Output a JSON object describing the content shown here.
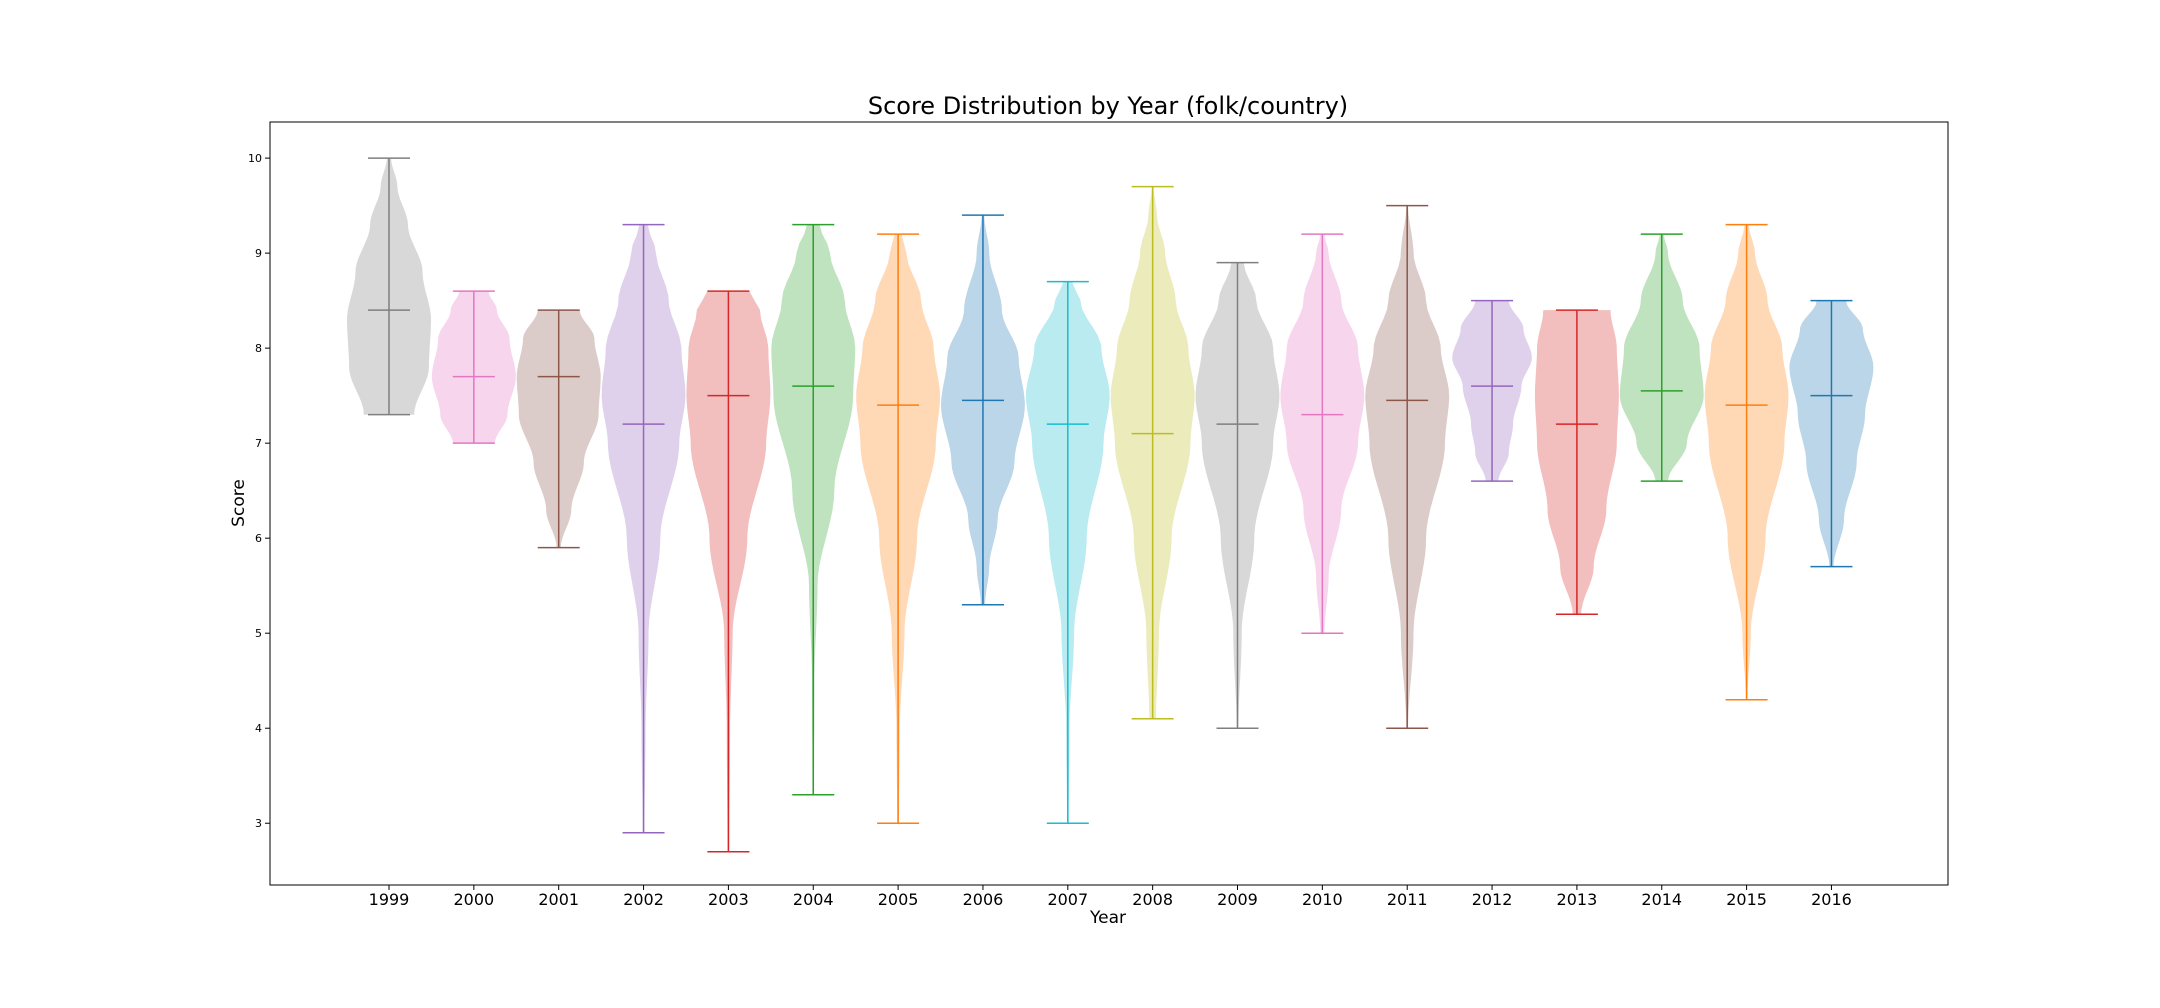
{
  "chart_data": {
    "type": "violin",
    "title": "Score Distribution by Year (folk/country)",
    "xlabel": "Year",
    "ylabel": "Score",
    "ylim": [
      2.35,
      10.38
    ],
    "yticks": [
      "3",
      "4",
      "5",
      "6",
      "7",
      "8",
      "9",
      "10"
    ],
    "grid": false,
    "categories": [
      "1999",
      "2000",
      "2001",
      "2002",
      "2003",
      "2004",
      "2005",
      "2006",
      "2007",
      "2008",
      "2009",
      "2010",
      "2011",
      "2012",
      "2013",
      "2014",
      "2015",
      "2016"
    ],
    "series": [
      {
        "category": "1999",
        "min": 7.3,
        "max": 10.0,
        "median": 8.4,
        "color": "#7f7f7f",
        "shape": [
          [
            7.3,
            0.6
          ],
          [
            7.8,
            0.95
          ],
          [
            8.3,
            1.0
          ],
          [
            8.8,
            0.8
          ],
          [
            9.3,
            0.45
          ],
          [
            9.7,
            0.2
          ],
          [
            10.0,
            0.05
          ]
        ]
      },
      {
        "category": "2000",
        "min": 7.0,
        "max": 8.6,
        "median": 7.7,
        "color": "#e377c2",
        "shape": [
          [
            7.0,
            0.5
          ],
          [
            7.3,
            0.8
          ],
          [
            7.7,
            1.0
          ],
          [
            8.1,
            0.85
          ],
          [
            8.4,
            0.55
          ],
          [
            8.6,
            0.35
          ]
        ]
      },
      {
        "category": "2001",
        "min": 5.9,
        "max": 8.4,
        "median": 7.7,
        "color": "#8c564b",
        "shape": [
          [
            5.9,
            0.05
          ],
          [
            6.3,
            0.3
          ],
          [
            6.8,
            0.6
          ],
          [
            7.3,
            0.95
          ],
          [
            7.7,
            1.0
          ],
          [
            8.1,
            0.85
          ],
          [
            8.4,
            0.5
          ]
        ]
      },
      {
        "category": "2002",
        "min": 2.9,
        "max": 9.3,
        "median": 7.2,
        "color": "#9467bd",
        "shape": [
          [
            2.9,
            0.02
          ],
          [
            4.0,
            0.05
          ],
          [
            5.0,
            0.12
          ],
          [
            6.0,
            0.4
          ],
          [
            7.0,
            0.85
          ],
          [
            7.5,
            1.0
          ],
          [
            8.0,
            0.9
          ],
          [
            8.5,
            0.6
          ],
          [
            9.0,
            0.3
          ],
          [
            9.3,
            0.1
          ]
        ]
      },
      {
        "category": "2003",
        "min": 2.7,
        "max": 8.6,
        "median": 7.5,
        "color": "#d62728",
        "shape": [
          [
            2.7,
            0.02
          ],
          [
            4.0,
            0.04
          ],
          [
            5.0,
            0.1
          ],
          [
            6.0,
            0.45
          ],
          [
            7.0,
            0.9
          ],
          [
            7.5,
            1.0
          ],
          [
            8.0,
            0.95
          ],
          [
            8.4,
            0.75
          ],
          [
            8.6,
            0.5
          ]
        ]
      },
      {
        "category": "2004",
        "min": 3.3,
        "max": 9.3,
        "median": 7.6,
        "color": "#2ca02c",
        "shape": [
          [
            3.3,
            0.02
          ],
          [
            4.5,
            0.03
          ],
          [
            5.5,
            0.1
          ],
          [
            6.5,
            0.5
          ],
          [
            7.5,
            0.95
          ],
          [
            8.0,
            1.0
          ],
          [
            8.5,
            0.75
          ],
          [
            9.0,
            0.4
          ],
          [
            9.3,
            0.15
          ]
        ]
      },
      {
        "category": "2005",
        "min": 3.0,
        "max": 9.2,
        "median": 7.4,
        "color": "#ff7f0e",
        "shape": [
          [
            3.0,
            0.02
          ],
          [
            4.0,
            0.04
          ],
          [
            5.0,
            0.15
          ],
          [
            6.0,
            0.45
          ],
          [
            7.0,
            0.9
          ],
          [
            7.5,
            1.0
          ],
          [
            8.0,
            0.85
          ],
          [
            8.5,
            0.55
          ],
          [
            9.0,
            0.2
          ],
          [
            9.2,
            0.08
          ]
        ]
      },
      {
        "category": "2006",
        "min": 5.3,
        "max": 9.4,
        "median": 7.45,
        "color": "#1f77b4",
        "shape": [
          [
            5.3,
            0.05
          ],
          [
            5.7,
            0.15
          ],
          [
            6.2,
            0.35
          ],
          [
            6.8,
            0.75
          ],
          [
            7.4,
            1.0
          ],
          [
            7.9,
            0.85
          ],
          [
            8.4,
            0.45
          ],
          [
            9.0,
            0.15
          ],
          [
            9.4,
            0.03
          ]
        ]
      },
      {
        "category": "2007",
        "min": 3.0,
        "max": 8.7,
        "median": 7.2,
        "color": "#17becf",
        "shape": [
          [
            3.0,
            0.02
          ],
          [
            4.0,
            0.04
          ],
          [
            5.0,
            0.15
          ],
          [
            6.0,
            0.45
          ],
          [
            7.0,
            0.85
          ],
          [
            7.5,
            1.0
          ],
          [
            8.0,
            0.8
          ],
          [
            8.5,
            0.3
          ],
          [
            8.7,
            0.1
          ]
        ]
      },
      {
        "category": "2008",
        "min": 4.1,
        "max": 9.7,
        "median": 7.1,
        "color": "#bcbd22",
        "shape": [
          [
            4.1,
            0.08
          ],
          [
            5.0,
            0.15
          ],
          [
            6.0,
            0.45
          ],
          [
            7.0,
            0.9
          ],
          [
            7.5,
            1.0
          ],
          [
            8.0,
            0.85
          ],
          [
            8.5,
            0.55
          ],
          [
            9.0,
            0.3
          ],
          [
            9.4,
            0.1
          ],
          [
            9.7,
            0.02
          ]
        ]
      },
      {
        "category": "2009",
        "min": 4.0,
        "max": 8.9,
        "median": 7.2,
        "color": "#7f7f7f",
        "shape": [
          [
            4.0,
            0.02
          ],
          [
            5.0,
            0.1
          ],
          [
            6.0,
            0.4
          ],
          [
            7.0,
            0.85
          ],
          [
            7.5,
            1.0
          ],
          [
            8.0,
            0.85
          ],
          [
            8.5,
            0.45
          ],
          [
            8.9,
            0.15
          ]
        ]
      },
      {
        "category": "2010",
        "min": 5.0,
        "max": 9.2,
        "median": 7.3,
        "color": "#e377c2",
        "shape": [
          [
            5.0,
            0.05
          ],
          [
            5.6,
            0.15
          ],
          [
            6.3,
            0.45
          ],
          [
            7.0,
            0.85
          ],
          [
            7.5,
            1.0
          ],
          [
            8.0,
            0.85
          ],
          [
            8.5,
            0.45
          ],
          [
            9.0,
            0.15
          ],
          [
            9.2,
            0.05
          ]
        ]
      },
      {
        "category": "2011",
        "min": 4.0,
        "max": 9.5,
        "median": 7.45,
        "color": "#8c564b",
        "shape": [
          [
            4.0,
            0.02
          ],
          [
            5.0,
            0.15
          ],
          [
            6.0,
            0.45
          ],
          [
            7.0,
            0.9
          ],
          [
            7.5,
            1.0
          ],
          [
            8.0,
            0.8
          ],
          [
            8.5,
            0.45
          ],
          [
            9.0,
            0.15
          ],
          [
            9.5,
            0.02
          ]
        ]
      },
      {
        "category": "2012",
        "min": 6.6,
        "max": 8.5,
        "median": 7.6,
        "color": "#9467bd",
        "shape": [
          [
            6.6,
            0.15
          ],
          [
            6.9,
            0.4
          ],
          [
            7.2,
            0.5
          ],
          [
            7.6,
            0.7
          ],
          [
            7.9,
            0.95
          ],
          [
            8.2,
            0.75
          ],
          [
            8.5,
            0.4
          ]
        ]
      },
      {
        "category": "2013",
        "min": 5.2,
        "max": 8.4,
        "median": 7.2,
        "color": "#d62728",
        "shape": [
          [
            5.2,
            0.1
          ],
          [
            5.7,
            0.4
          ],
          [
            6.3,
            0.7
          ],
          [
            7.0,
            0.95
          ],
          [
            7.5,
            1.0
          ],
          [
            8.0,
            0.95
          ],
          [
            8.4,
            0.8
          ]
        ]
      },
      {
        "category": "2014",
        "min": 6.6,
        "max": 9.2,
        "median": 7.55,
        "color": "#2ca02c",
        "shape": [
          [
            6.6,
            0.15
          ],
          [
            7.0,
            0.6
          ],
          [
            7.5,
            1.0
          ],
          [
            8.0,
            0.9
          ],
          [
            8.5,
            0.5
          ],
          [
            9.0,
            0.15
          ],
          [
            9.2,
            0.05
          ]
        ]
      },
      {
        "category": "2015",
        "min": 4.3,
        "max": 9.3,
        "median": 7.4,
        "color": "#ff7f0e",
        "shape": [
          [
            4.3,
            0.02
          ],
          [
            5.0,
            0.1
          ],
          [
            6.0,
            0.45
          ],
          [
            7.0,
            0.9
          ],
          [
            7.5,
            1.0
          ],
          [
            8.0,
            0.85
          ],
          [
            8.5,
            0.5
          ],
          [
            9.0,
            0.2
          ],
          [
            9.3,
            0.05
          ]
        ]
      },
      {
        "category": "2016",
        "min": 5.7,
        "max": 8.5,
        "median": 7.5,
        "color": "#1f77b4",
        "shape": [
          [
            5.7,
            0.05
          ],
          [
            6.2,
            0.3
          ],
          [
            6.8,
            0.6
          ],
          [
            7.3,
            0.8
          ],
          [
            7.8,
            1.0
          ],
          [
            8.2,
            0.75
          ],
          [
            8.5,
            0.35
          ]
        ]
      }
    ]
  }
}
